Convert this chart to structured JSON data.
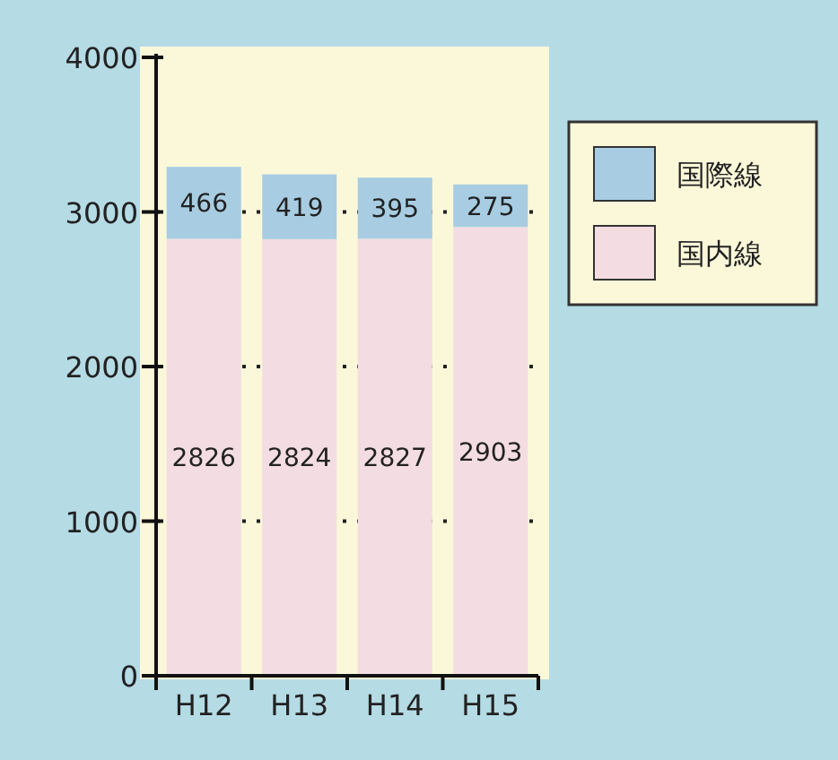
{
  "chart_data": {
    "type": "bar",
    "stacked": true,
    "categories": [
      "H12",
      "H13",
      "H14",
      "H15"
    ],
    "series": [
      {
        "name": "国内線",
        "color": "#f3dde2",
        "values": [
          2826,
          2824,
          2827,
          2903
        ]
      },
      {
        "name": "国際線",
        "color": "#a8cde2",
        "values": [
          466,
          419,
          395,
          275
        ]
      }
    ],
    "ylim": [
      0,
      4000
    ],
    "yticks": [
      0,
      1000,
      2000,
      3000,
      4000
    ],
    "grid": "y",
    "legend": "right",
    "data_labels": true
  }
}
